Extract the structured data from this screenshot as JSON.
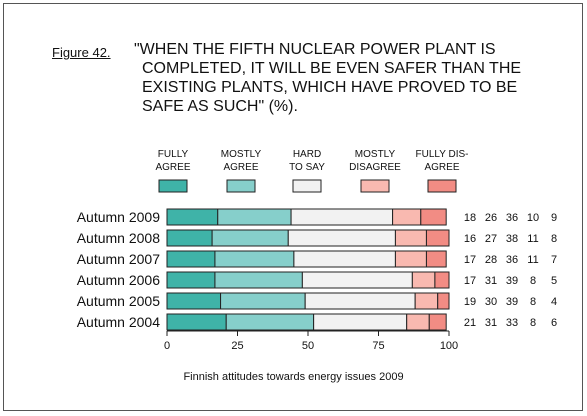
{
  "figure": {
    "label": "Figure 42.",
    "title_lines": [
      "\"WHEN THE FIFTH NUCLEAR POWER PLANT IS",
      "COMPLETED, IT WILL BE EVEN SAFER THAN THE",
      "EXISTING PLANTS, WHICH HAVE PROVED TO BE",
      "SAFE AS SUCH\" (%)."
    ],
    "caption": "Finnish attitudes towards energy issues 2009"
  },
  "chart_data": {
    "type": "bar",
    "orientation": "horizontal",
    "stacked": true,
    "categories": [
      "Autumn 2009",
      "Autumn 2008",
      "Autumn 2007",
      "Autumn 2006",
      "Autumn 2005",
      "Autumn 2004"
    ],
    "series": [
      {
        "name": "FULLY AGREE",
        "label_lines": [
          "FULLY",
          "AGREE"
        ],
        "color": "#3fb3a8",
        "values": [
          18,
          16,
          17,
          17,
          19,
          21
        ]
      },
      {
        "name": "MOSTLY AGREE",
        "label_lines": [
          "MOSTLY",
          "AGREE"
        ],
        "color": "#86cfcb",
        "values": [
          26,
          27,
          28,
          31,
          30,
          31
        ]
      },
      {
        "name": "HARD TO SAY",
        "label_lines": [
          "HARD",
          "TO SAY"
        ],
        "color": "#f2f2f2",
        "values": [
          36,
          38,
          36,
          39,
          39,
          33
        ]
      },
      {
        "name": "MOSTLY DISAGREE",
        "label_lines": [
          "MOSTLY",
          "DISAGREE"
        ],
        "color": "#f9b9b0",
        "values": [
          10,
          11,
          11,
          8,
          8,
          8
        ]
      },
      {
        "name": "FULLY DISAGREE",
        "label_lines": [
          "FULLY DIS-",
          "AGREE"
        ],
        "color": "#f28c84",
        "values": [
          9,
          8,
          7,
          5,
          4,
          6
        ]
      }
    ],
    "xlim": [
      0,
      100
    ],
    "xticks": [
      0,
      25,
      50,
      75,
      100
    ],
    "legend_position": "top",
    "grid": false,
    "xlabel": "",
    "ylabel": ""
  }
}
